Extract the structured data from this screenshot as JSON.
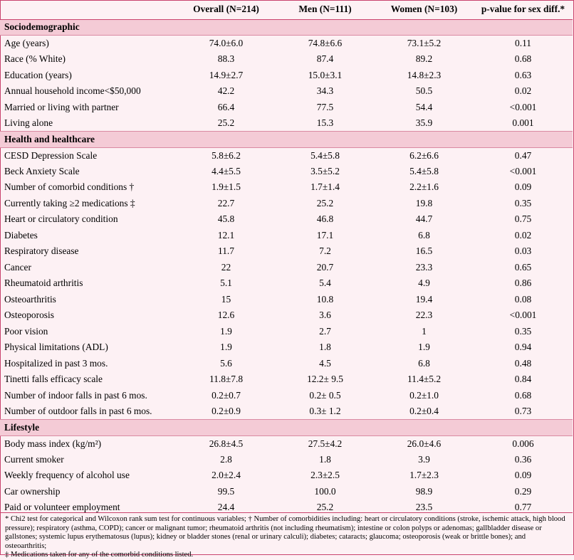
{
  "headers": [
    "",
    "Overall (N=214)",
    "Men (N=111)",
    "Women (N=103)",
    "p-value for sex diff.*"
  ],
  "sections": [
    {
      "title": "Sociodemographic",
      "rows": [
        [
          "Age (years)",
          "74.0±6.0",
          "74.8±6.6",
          "73.1±5.2",
          "0.11"
        ],
        [
          "Race (% White)",
          "88.3",
          "87.4",
          "89.2",
          "0.68"
        ],
        [
          "Education (years)",
          "14.9±2.7",
          "15.0±3.1",
          "14.8±2.3",
          "0.63"
        ],
        [
          "Annual household income<$50,000",
          "42.2",
          "34.3",
          "50.5",
          "0.02"
        ],
        [
          "Married or living with partner",
          "66.4",
          "77.5",
          "54.4",
          "<0.001"
        ],
        [
          "Living alone",
          "25.2",
          "15.3",
          "35.9",
          "0.001"
        ]
      ]
    },
    {
      "title": "Health and healthcare",
      "rows": [
        [
          "CESD Depression Scale",
          "5.8±6.2",
          "5.4±5.8",
          "6.2±6.6",
          "0.47"
        ],
        [
          "Beck Anxiety Scale",
          "4.4±5.5",
          "3.5±5.2",
          "5.4±5.8",
          "<0.001"
        ],
        [
          "Number of comorbid conditions †",
          "1.9±1.5",
          "1.7±1.4",
          "2.2±1.6",
          "0.09"
        ],
        [
          "Currently taking ≥2 medications ‡",
          "22.7",
          "25.2",
          "19.8",
          "0.35"
        ],
        [
          "Heart or circulatory condition",
          "45.8",
          "46.8",
          "44.7",
          "0.75"
        ],
        [
          "Diabetes",
          "12.1",
          "17.1",
          "6.8",
          "0.02"
        ],
        [
          "Respiratory disease",
          "11.7",
          "7.2",
          "16.5",
          "0.03"
        ],
        [
          "Cancer",
          "22",
          "20.7",
          "23.3",
          "0.65"
        ],
        [
          "Rheumatoid arthritis",
          "5.1",
          "5.4",
          "4.9",
          "0.86"
        ],
        [
          "Osteoarthritis",
          "15",
          "10.8",
          "19.4",
          "0.08"
        ],
        [
          "Osteoporosis",
          "12.6",
          "3.6",
          "22.3",
          "<0.001"
        ],
        [
          "Poor vision",
          "1.9",
          "2.7",
          "1",
          "0.35"
        ],
        [
          "Physical limitations (ADL)",
          "1.9",
          "1.8",
          "1.9",
          "0.94"
        ],
        [
          "Hospitalized in past 3 mos.",
          "5.6",
          "4.5",
          "6.8",
          "0.48"
        ],
        [
          "Tinetti falls efficacy scale",
          "11.8±7.8",
          "12.2± 9.5",
          "11.4±5.2",
          "0.84"
        ],
        [
          "Number of indoor falls in past 6 mos.",
          "0.2±0.7",
          "0.2± 0.5",
          "0.2±1.0",
          "0.68"
        ],
        [
          "Number of outdoor falls in past 6 mos.",
          "0.2±0.9",
          "0.3± 1.2",
          "0.2±0.4",
          "0.73"
        ]
      ]
    },
    {
      "title": "Lifestyle",
      "rows": [
        [
          "Body mass index (kg/m²)",
          "26.8±4.5",
          "27.5±4.2",
          "26.0±4.6",
          "0.006"
        ],
        [
          "Current smoker",
          "2.8",
          "1.8",
          "3.9",
          "0.36"
        ],
        [
          "Weekly frequency of alcohol use",
          "2.0±2.4",
          "2.3±2.5",
          "1.7±2.3",
          "0.09"
        ],
        [
          "Car ownership",
          "99.5",
          "100.0",
          "98.9",
          "0.29"
        ],
        [
          "Paid or volunteer employment",
          "24.4",
          "25.2",
          "23.5",
          "0.77"
        ]
      ]
    }
  ],
  "footnotes": [
    "* Chi2 test for categorical and Wilcoxon rank sum test for continuous variables; † Number of comorbidities including: heart or circulatory conditions (stroke, ischemic attack, high blood pressure); respiratory (asthma, COPD); cancer or malignant tumor; rheumatoid arthritis (not including rheumatism); intestine or colon polyps or adenomas; gallbladder disease or gallstones; systemic lupus erythematosus (lupus); kidney or bladder stones (renal or urinary calculi); diabetes; cataracts; glaucoma; osteoporosis (weak or brittle bones); and osteoarthritis;",
    "‡ Medications taken for any of the comorbid conditions listed."
  ]
}
